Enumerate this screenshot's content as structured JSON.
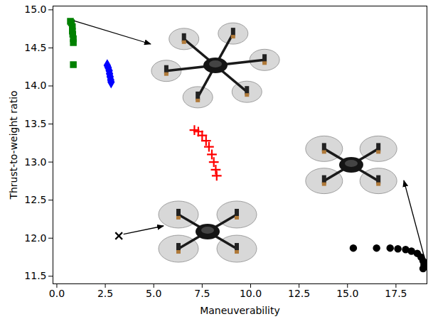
{
  "chart_data": {
    "type": "scatter",
    "x_label": "Maneuverability",
    "y_label": "Thrust-to-weight ratio",
    "xlim": [
      -0.2,
      19.1
    ],
    "ylim": [
      11.4,
      15.05
    ],
    "xticks": [
      {
        "value": 0,
        "label": "0.0"
      },
      {
        "value": 2.5,
        "label": "2.5"
      },
      {
        "value": 5,
        "label": "5.0"
      },
      {
        "value": 7.5,
        "label": "7.5"
      },
      {
        "value": 10,
        "label": "10.0"
      },
      {
        "value": 12.5,
        "label": "12.5"
      },
      {
        "value": 15,
        "label": "15.0"
      },
      {
        "value": 17.5,
        "label": "17.5"
      }
    ],
    "yticks": [
      {
        "value": 11.5,
        "label": "11.5"
      },
      {
        "value": 12,
        "label": "12.0"
      },
      {
        "value": 12.5,
        "label": "12.5"
      },
      {
        "value": 13,
        "label": "13.0"
      },
      {
        "value": 13.5,
        "label": "13.5"
      },
      {
        "value": 14,
        "label": "14.0"
      },
      {
        "value": 14.5,
        "label": "14.5"
      },
      {
        "value": 15,
        "label": "15.0"
      }
    ],
    "grid": false,
    "series": [
      {
        "color": "#008000",
        "marker": "square",
        "x": [
          0.7,
          0.75,
          0.8,
          0.8,
          0.82,
          0.85,
          0.85,
          0.85
        ],
        "values": [
          14.85,
          14.83,
          14.78,
          14.72,
          14.68,
          14.62,
          14.57,
          14.28
        ]
      },
      {
        "color": "#0000ff",
        "marker": "diamond",
        "x": [
          2.6,
          2.65,
          2.7,
          2.72,
          2.75,
          2.78,
          2.8
        ],
        "values": [
          14.27,
          14.24,
          14.2,
          14.16,
          14.12,
          14.08,
          14.05
        ]
      },
      {
        "color": "#ff0000",
        "marker": "plus",
        "x": [
          7.1,
          7.3,
          7.5,
          7.7,
          7.85,
          8.0,
          8.1,
          8.2,
          8.25
        ],
        "values": [
          13.42,
          13.4,
          13.35,
          13.28,
          13.2,
          13.1,
          13.0,
          12.9,
          12.82
        ]
      },
      {
        "color": "#000000",
        "marker": "circle",
        "x": [
          15.3,
          16.5,
          17.2,
          17.6,
          18.0,
          18.3,
          18.6,
          18.8,
          18.9,
          18.95,
          18.9
        ],
        "values": [
          11.87,
          11.87,
          11.87,
          11.86,
          11.85,
          11.83,
          11.8,
          11.75,
          11.7,
          11.65,
          11.6
        ]
      },
      {
        "color": "#000000",
        "marker": "times",
        "x": [
          3.2
        ],
        "values": [
          12.03
        ]
      }
    ]
  }
}
